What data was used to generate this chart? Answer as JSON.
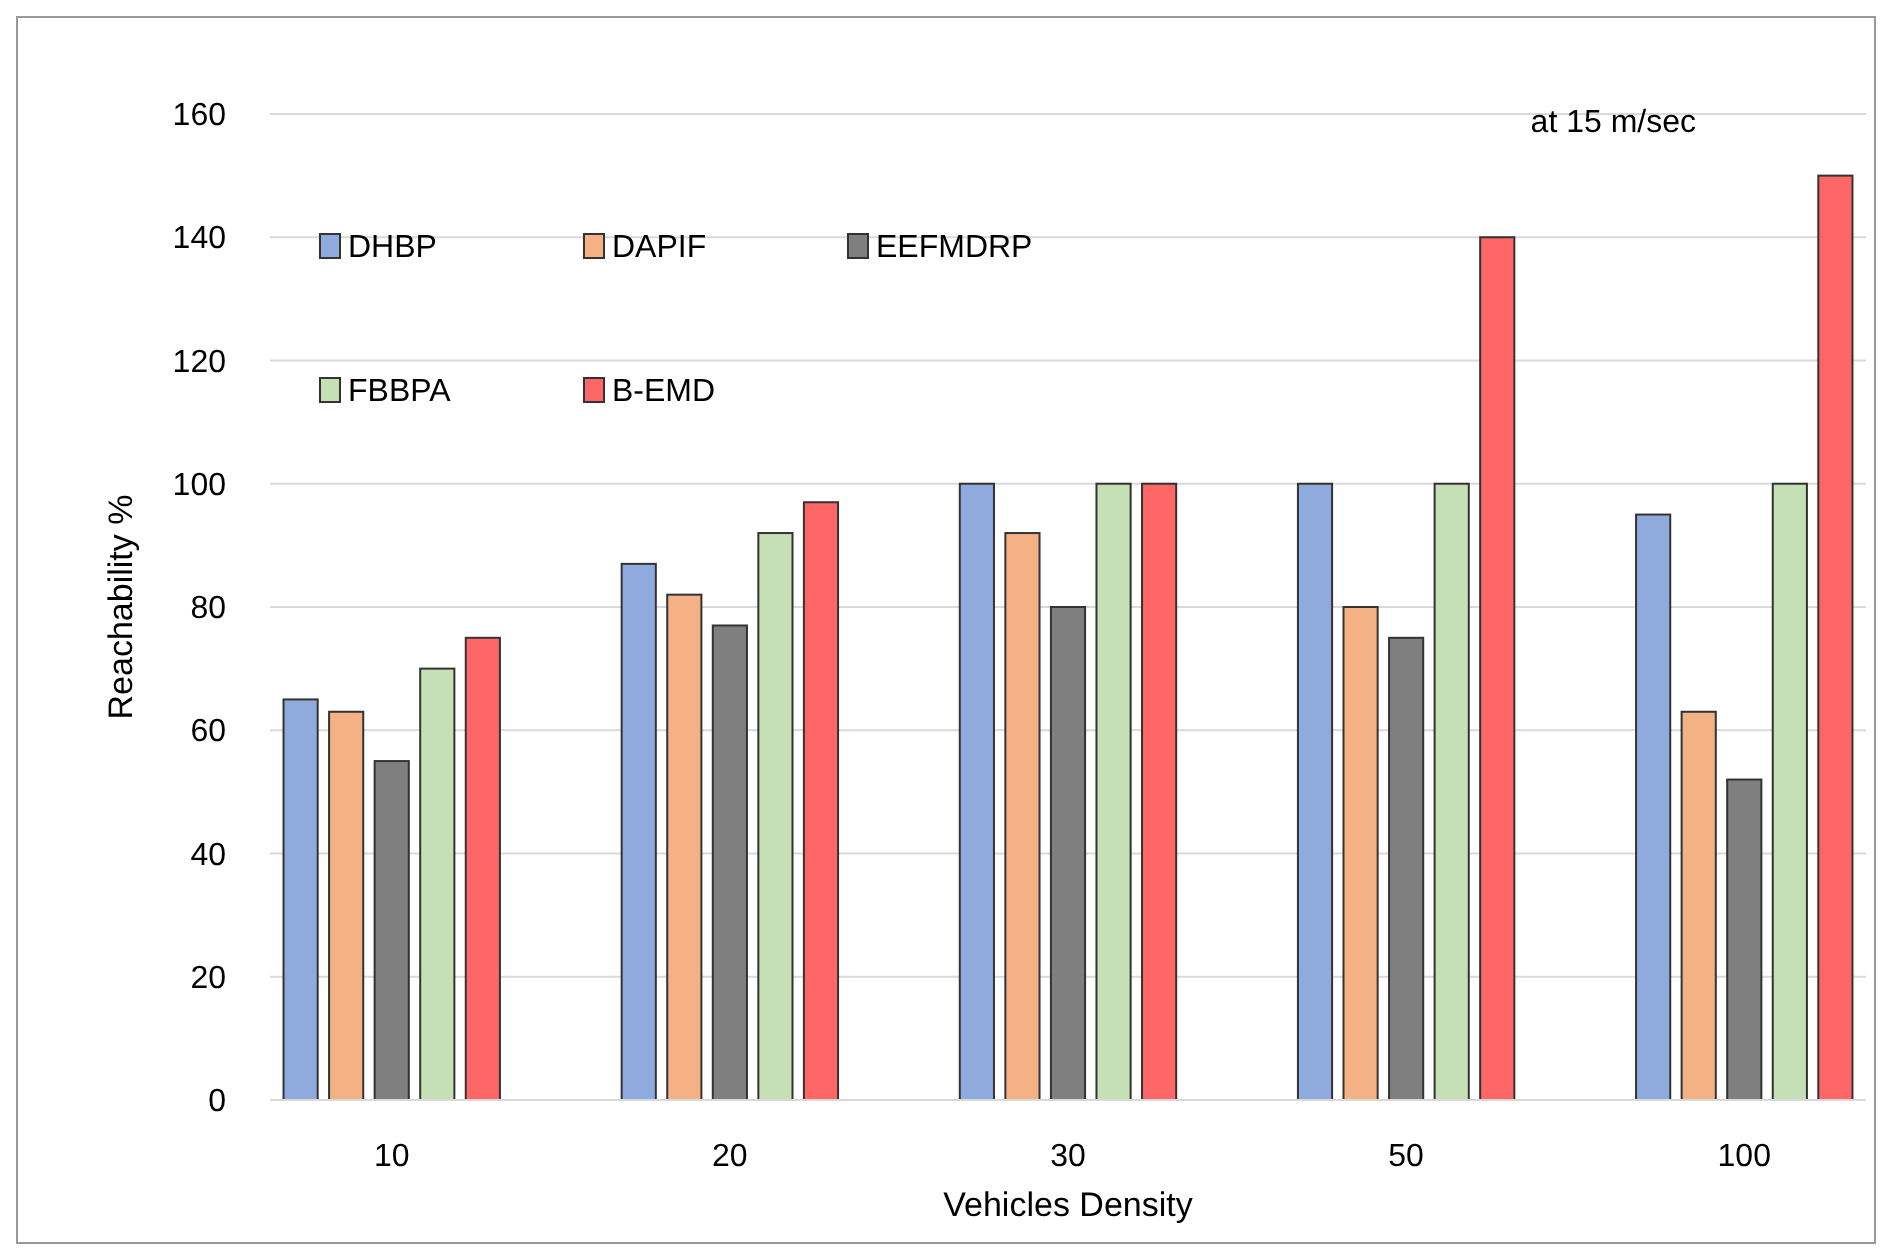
{
  "chart_data": {
    "type": "bar",
    "xlabel": "Vehicles Density",
    "ylabel": "Reachability %",
    "annotations": [
      "at 15 m/sec"
    ],
    "categories": [
      "10",
      "20",
      "30",
      "50",
      "100"
    ],
    "series": [
      {
        "name": "DHBP",
        "color": "#8faadc",
        "values": [
          65,
          87,
          100,
          100,
          95
        ]
      },
      {
        "name": "DAPIF",
        "color": "#f4b183",
        "values": [
          63,
          82,
          92,
          80,
          63
        ]
      },
      {
        "name": "EEFMDRP",
        "color": "#7f7f7f",
        "values": [
          55,
          77,
          80,
          75,
          52
        ]
      },
      {
        "name": "FBBPA",
        "color": "#c5e0b4",
        "values": [
          70,
          92,
          100,
          100,
          100
        ]
      },
      {
        "name": "B-EMD",
        "color": "#ff6666",
        "values": [
          75,
          97,
          100,
          140,
          150
        ]
      }
    ],
    "ylim": [
      0,
      160
    ],
    "yticks": [
      0,
      20,
      40,
      60,
      80,
      100,
      120,
      140,
      160
    ],
    "grid": "y",
    "legend": "top left"
  }
}
